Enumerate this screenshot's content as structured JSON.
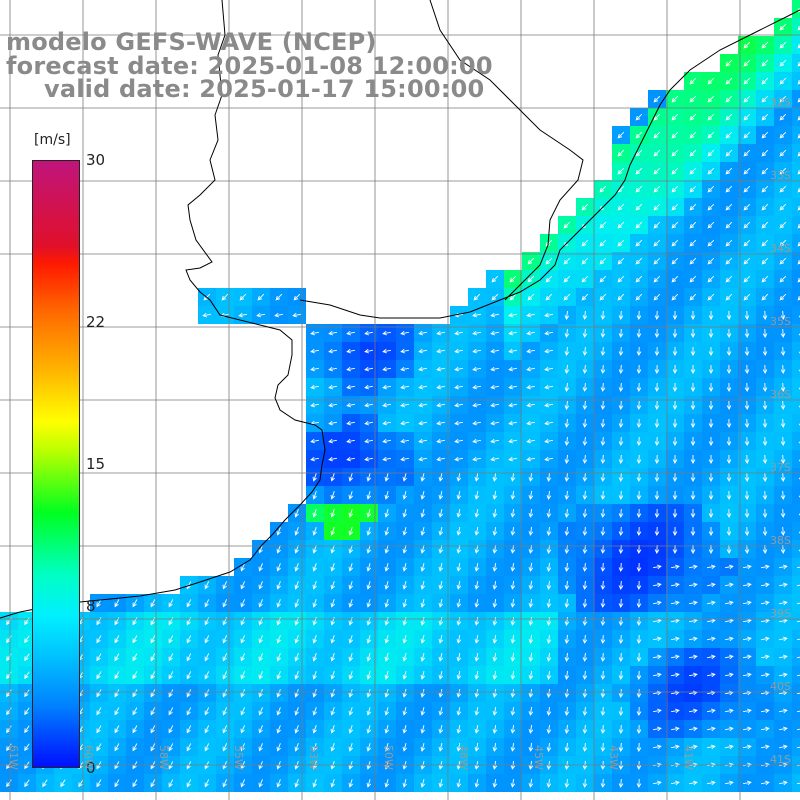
{
  "title": {
    "line1": "modelo GEFS-WAVE (NCEP)",
    "line2": "forecast date: 2025-01-08 12:00:00",
    "line3": "valid date: 2025-01-17 15:00:00"
  },
  "colorbar": {
    "units": "[m/s]",
    "ticks": [
      {
        "label": "30",
        "value": 30
      },
      {
        "label": "22",
        "value": 22
      },
      {
        "label": "15",
        "value": 15
      },
      {
        "label": "8",
        "value": 8
      },
      {
        "label": "0",
        "value": 0
      }
    ]
  },
  "lat_labels": [
    "32S",
    "33S",
    "34S",
    "35S",
    "36S",
    "37S",
    "38S",
    "39S",
    "40S",
    "41S"
  ],
  "lon_labels": [
    "61W",
    "60W",
    "58W",
    "55W",
    "53W",
    "50W",
    "48W",
    "45W",
    "43W",
    "41W"
  ],
  "colors": {
    "land": "#ffffff",
    "coast": "#000000",
    "grid": "#7a7a7a",
    "arrow": "#ffffff",
    "title": "#8a8a8a"
  }
}
